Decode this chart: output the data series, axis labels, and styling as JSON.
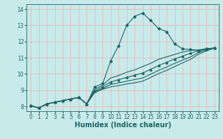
{
  "bg_color": "#c8eaea",
  "grid_color": "#e8b8b8",
  "line_color": "#1a6666",
  "xlabel": "Humidex (Indice chaleur)",
  "xlabel_fontsize": 7,
  "tick_fontsize": 5.5,
  "xlim": [
    -0.5,
    23.5
  ],
  "ylim": [
    7.7,
    14.3
  ],
  "xticks": [
    0,
    1,
    2,
    3,
    4,
    5,
    6,
    7,
    8,
    9,
    10,
    11,
    12,
    13,
    14,
    15,
    16,
    17,
    18,
    19,
    20,
    21,
    22,
    23
  ],
  "yticks": [
    8,
    9,
    10,
    11,
    12,
    13,
    14
  ],
  "lines": [
    {
      "x": [
        0,
        1,
        2,
        3,
        4,
        5,
        6,
        7,
        8,
        9,
        10,
        11,
        12,
        13,
        14,
        15,
        16,
        17,
        18,
        19,
        20,
        21,
        22,
        23
      ],
      "y": [
        8.05,
        7.9,
        8.15,
        8.25,
        8.35,
        8.45,
        8.55,
        8.15,
        9.2,
        9.4,
        10.8,
        11.75,
        13.0,
        13.55,
        13.75,
        13.3,
        12.8,
        12.6,
        11.85,
        11.55,
        11.5,
        11.45,
        11.55,
        11.6
      ],
      "marker": "D",
      "markersize": 1.8,
      "linewidth": 0.8
    },
    {
      "x": [
        0,
        1,
        2,
        3,
        4,
        5,
        6,
        7,
        8,
        9,
        10,
        11,
        12,
        13,
        14,
        15,
        16,
        17,
        18,
        19,
        20,
        21,
        22,
        23
      ],
      "y": [
        8.05,
        7.9,
        8.15,
        8.25,
        8.35,
        8.45,
        8.55,
        8.15,
        9.05,
        9.3,
        9.75,
        9.9,
        10.1,
        10.25,
        10.45,
        10.65,
        10.9,
        11.05,
        11.2,
        11.35,
        11.45,
        11.48,
        11.55,
        11.6
      ],
      "marker": null,
      "markersize": 0,
      "linewidth": 0.8
    },
    {
      "x": [
        0,
        1,
        2,
        3,
        4,
        5,
        6,
        7,
        8,
        9,
        10,
        11,
        12,
        13,
        14,
        15,
        16,
        17,
        18,
        19,
        20,
        21,
        22,
        23
      ],
      "y": [
        8.05,
        7.9,
        8.15,
        8.25,
        8.35,
        8.45,
        8.55,
        8.15,
        8.95,
        9.2,
        9.5,
        9.65,
        9.78,
        9.92,
        10.05,
        10.28,
        10.52,
        10.72,
        10.92,
        11.1,
        11.28,
        11.42,
        11.52,
        11.6
      ],
      "marker": "^",
      "markersize": 2.2,
      "linewidth": 0.8
    },
    {
      "x": [
        0,
        1,
        2,
        3,
        4,
        5,
        6,
        7,
        8,
        9,
        10,
        11,
        12,
        13,
        14,
        15,
        16,
        17,
        18,
        19,
        20,
        21,
        22,
        23
      ],
      "y": [
        8.05,
        7.9,
        8.15,
        8.25,
        8.35,
        8.45,
        8.55,
        8.15,
        8.9,
        9.1,
        9.35,
        9.45,
        9.55,
        9.65,
        9.75,
        9.98,
        10.22,
        10.42,
        10.65,
        10.85,
        11.05,
        11.32,
        11.48,
        11.6
      ],
      "marker": null,
      "markersize": 0,
      "linewidth": 0.8
    },
    {
      "x": [
        0,
        1,
        2,
        3,
        4,
        5,
        6,
        7,
        8,
        9,
        10,
        11,
        12,
        13,
        14,
        15,
        16,
        17,
        18,
        19,
        20,
        21,
        22,
        23
      ],
      "y": [
        8.05,
        7.9,
        8.15,
        8.25,
        8.35,
        8.45,
        8.55,
        8.15,
        8.85,
        9.05,
        9.2,
        9.28,
        9.38,
        9.45,
        9.55,
        9.78,
        10.02,
        10.22,
        10.45,
        10.68,
        10.9,
        11.22,
        11.42,
        11.6
      ],
      "marker": null,
      "markersize": 0,
      "linewidth": 0.8
    }
  ]
}
